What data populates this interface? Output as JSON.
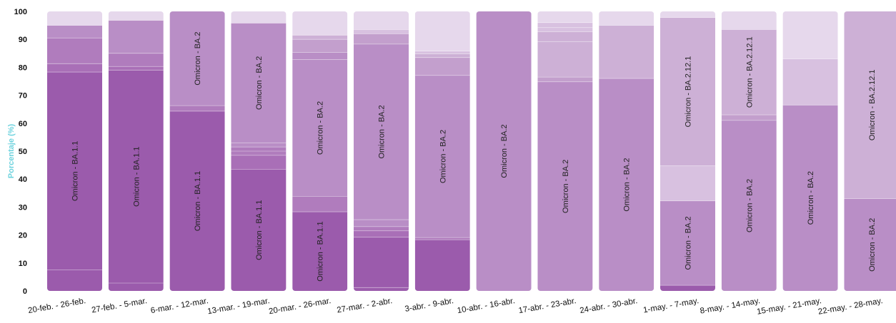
{
  "chart_data": {
    "type": "bar",
    "stacked": true,
    "title": "",
    "xlabel": "",
    "ylabel": "Porcentaje (%)",
    "ylim": [
      0,
      100
    ],
    "yticks": [
      0,
      10,
      20,
      30,
      40,
      50,
      60,
      70,
      80,
      90,
      100
    ],
    "grid": false,
    "legend": "none",
    "colors": {
      "ylabel": "#6fd3de",
      "shades": [
        "#9b5bac",
        "#a96fb7",
        "#b07cbd",
        "#b98ec6",
        "#c39fcd",
        "#cdb0d6",
        "#d8c1e0",
        "#e6d8ec"
      ]
    },
    "categories": [
      "20-feb. - 26-feb.",
      "27-feb. - 5-mar.",
      "6-mar. - 12-mar.",
      "13-mar. - 19-mar.",
      "20-mar. - 26-mar.",
      "27-mar. - 2-abr.",
      "3-abr. - 9-abr.",
      "10-abr. - 16-abr.",
      "17-abr. - 23-abr.",
      "24-abr. - 30-abr.",
      "1-may. - 7-may.",
      "8-may. - 14-may.",
      "15-may. - 21-may.",
      "22-may. - 28-may."
    ],
    "bars": [
      {
        "segments": [
          {
            "value": 7.5,
            "shade": 0
          },
          {
            "value": 70.8,
            "shade": 0,
            "label": "Omicron - BA.1.1"
          },
          {
            "value": 3,
            "shade": 1
          },
          {
            "value": 9.2,
            "shade": 2
          },
          {
            "value": 4.5,
            "shade": 3
          },
          {
            "value": 5,
            "shade": 7
          }
        ]
      },
      {
        "segments": [
          {
            "value": 2.8,
            "shade": 0
          },
          {
            "value": 76.2,
            "shade": 0,
            "label": "Omicron - BA.1.1"
          },
          {
            "value": 1.3,
            "shade": 1
          },
          {
            "value": 4.7,
            "shade": 2
          },
          {
            "value": 11.8,
            "shade": 3
          },
          {
            "value": 3.2,
            "shade": 7
          }
        ]
      },
      {
        "segments": [
          {
            "value": 64.3,
            "shade": 0,
            "label": "Omicron - BA.1.1"
          },
          {
            "value": 2,
            "shade": 2
          },
          {
            "value": 33.7,
            "shade": 3,
            "label": "Omicron - BA.2"
          }
        ]
      },
      {
        "segments": [
          {
            "value": 43.5,
            "shade": 0,
            "label": "Omicron - BA.1.1"
          },
          {
            "value": 5,
            "shade": 1
          },
          {
            "value": 1.5,
            "shade": 2
          },
          {
            "value": 1.5,
            "shade": 2
          },
          {
            "value": 1.5,
            "shade": 3
          },
          {
            "value": 42.8,
            "shade": 3,
            "label": "Omicron - BA.2"
          },
          {
            "value": 4.2,
            "shade": 7
          }
        ]
      },
      {
        "segments": [
          {
            "value": 28.3,
            "shade": 0,
            "label": "Omicron - BA.1.1"
          },
          {
            "value": 5.5,
            "shade": 2
          },
          {
            "value": 49,
            "shade": 3,
            "label": "Omicron - BA.2"
          },
          {
            "value": 2.5,
            "shade": 3
          },
          {
            "value": 4.7,
            "shade": 4
          },
          {
            "value": 1.5,
            "shade": 5
          },
          {
            "value": 8.5,
            "shade": 7
          }
        ]
      },
      {
        "segments": [
          {
            "value": 1.2,
            "shade": 0
          },
          {
            "value": 18,
            "shade": 0
          },
          {
            "value": 2.3,
            "shade": 1
          },
          {
            "value": 1.5,
            "shade": 2
          },
          {
            "value": 2.5,
            "shade": 3
          },
          {
            "value": 62.8,
            "shade": 3,
            "label": "Omicron - BA.2"
          },
          {
            "value": 3.7,
            "shade": 4
          },
          {
            "value": 1.5,
            "shade": 6
          },
          {
            "value": 6.5,
            "shade": 7
          }
        ]
      },
      {
        "segments": [
          {
            "value": 18.3,
            "shade": 0
          },
          {
            "value": 0.8,
            "shade": 2
          },
          {
            "value": 58,
            "shade": 3,
            "label": "Omicron - BA.2"
          },
          {
            "value": 6.4,
            "shade": 4
          },
          {
            "value": 1.3,
            "shade": 5
          },
          {
            "value": 1,
            "shade": 6
          },
          {
            "value": 14.2,
            "shade": 7
          }
        ]
      },
      {
        "segments": [
          {
            "value": 100,
            "shade": 3,
            "label": "Omicron - BA.2"
          }
        ]
      },
      {
        "segments": [
          {
            "value": 74.8,
            "shade": 3,
            "label": "Omicron - BA.2"
          },
          {
            "value": 1.7,
            "shade": 4
          },
          {
            "value": 12.7,
            "shade": 5
          },
          {
            "value": 3.5,
            "shade": 5
          },
          {
            "value": 1.5,
            "shade": 6
          },
          {
            "value": 1.8,
            "shade": 6
          },
          {
            "value": 4,
            "shade": 7
          }
        ]
      },
      {
        "segments": [
          {
            "value": 76,
            "shade": 3,
            "label": "Omicron - BA.2"
          },
          {
            "value": 19,
            "shade": 5
          },
          {
            "value": 5,
            "shade": 7
          }
        ]
      },
      {
        "segments": [
          {
            "value": 2,
            "shade": 0
          },
          {
            "value": 30.2,
            "shade": 3,
            "label": "Omicron - BA.2"
          },
          {
            "value": 12.6,
            "shade": 6
          },
          {
            "value": 53,
            "shade": 5,
            "label": "Omicron - BA.2.12.1"
          },
          {
            "value": 2.2,
            "shade": 7
          }
        ]
      },
      {
        "segments": [
          {
            "value": 61,
            "shade": 3,
            "label": "Omicron - BA.2"
          },
          {
            "value": 2,
            "shade": 4
          },
          {
            "value": 30.5,
            "shade": 5,
            "label": "Omicron - BA.2.12.1"
          },
          {
            "value": 6.5,
            "shade": 7
          }
        ]
      },
      {
        "segments": [
          {
            "value": 66.5,
            "shade": 3,
            "label": "Omicron - BA.2"
          },
          {
            "value": 16.5,
            "shade": 6
          },
          {
            "value": 17,
            "shade": 7
          }
        ]
      },
      {
        "segments": [
          {
            "value": 33,
            "shade": 3,
            "label": "Omicron - BA.2"
          },
          {
            "value": 67,
            "shade": 5,
            "label": "Omicron - BA.2.12.1"
          }
        ]
      }
    ]
  }
}
